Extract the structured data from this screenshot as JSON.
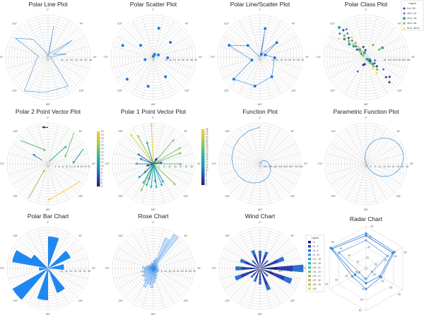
{
  "angle_labels": [
    "0°",
    "45°",
    "90°",
    "135°",
    "180°",
    "225°",
    "270°",
    "315°"
  ],
  "colors": {
    "line": "#5b9bd5",
    "marker": "#1e78e0",
    "grid": "#d3d3d3",
    "bar": "#1e88f0",
    "rose_fill": "#9cc8f5"
  },
  "chart_data": [
    {
      "title": "Polar Line Plot",
      "type": "line",
      "rmax": 36,
      "radial_ticks": [
        "0",
        "12",
        "16",
        "20",
        "24",
        "28",
        "32",
        "36"
      ],
      "points": [
        [
          0,
          0
        ],
        [
          10,
          27
        ],
        [
          15,
          3
        ],
        [
          55,
          25
        ],
        [
          60,
          5
        ],
        [
          80,
          16
        ],
        [
          85,
          2
        ],
        [
          145,
          30
        ],
        [
          185,
          30
        ],
        [
          215,
          35
        ],
        [
          260,
          10
        ],
        [
          275,
          8
        ],
        [
          300,
          32
        ],
        [
          320,
          20
        ],
        [
          340,
          4
        ],
        [
          0,
          0
        ]
      ]
    },
    {
      "title": "Polar Scatter Plot",
      "type": "scatter",
      "rmax": 40,
      "radial_ticks": [
        "0",
        "12",
        "16",
        "20",
        "24",
        "28",
        "32",
        "36",
        "40"
      ],
      "points": [
        [
          10.6,
          27.8
        ],
        [
          49,
          21.4
        ],
        [
          313,
          16.4
        ],
        [
          291,
          31
        ],
        [
          65,
          5.2
        ],
        [
          92,
          13.5
        ],
        [
          23,
          2.9
        ],
        [
          254,
          8.1
        ],
        [
          148,
          21.7
        ],
        [
          190,
          27.8
        ],
        [
          230,
          32.3
        ],
        [
          0,
          0.8
        ]
      ]
    },
    {
      "title": "Polar Line/Scatter Plot",
      "type": "linescatter",
      "rmax": 40,
      "radial_ticks": [
        "0",
        "12",
        "16",
        "20",
        "24",
        "28",
        "32",
        "36",
        "40"
      ],
      "points": [
        [
          0,
          0
        ],
        [
          10,
          27.5
        ],
        [
          23,
          3
        ],
        [
          49,
          21
        ],
        [
          66,
          5.3
        ],
        [
          92,
          13.8
        ],
        [
          149,
          21.5
        ],
        [
          190,
          27.7
        ],
        [
          230,
          32.3
        ],
        [
          251,
          8.2
        ],
        [
          291,
          31.3
        ],
        [
          314,
          16
        ],
        [
          0,
          0
        ]
      ]
    },
    {
      "title": "Polar Class Plot",
      "type": "class",
      "rmax": 180,
      "radial_ticks": [
        "0",
        "80",
        "100",
        "120",
        "140",
        "160",
        "180"
      ],
      "legend": {
        "title": "Legend",
        "entries": [
          "0 to <35",
          "35 to <42",
          "42 to <46",
          "46 to <54",
          "54 to <80.01"
        ],
        "colors": [
          "#2d2a7a",
          "#2f6fc8",
          "#20a39e",
          "#9cbf52",
          "#f0d24a"
        ],
        "shapes": [
          "plus",
          "diamond",
          "square",
          "circle",
          "triangle"
        ]
      },
      "points": [
        [
          318,
          170,
          2
        ],
        [
          320,
          150,
          0
        ],
        [
          312,
          150,
          1
        ],
        [
          325,
          145,
          1
        ],
        [
          305,
          140,
          4
        ],
        [
          315,
          130,
          3
        ],
        [
          322,
          128,
          1
        ],
        [
          310,
          120,
          2
        ],
        [
          318,
          110,
          0
        ],
        [
          325,
          105,
          4
        ],
        [
          313,
          100,
          3
        ],
        [
          320,
          92,
          1
        ],
        [
          308,
          90,
          2
        ],
        [
          316,
          82,
          4
        ],
        [
          323,
          75,
          3
        ],
        [
          312,
          70,
          2
        ],
        [
          318,
          62,
          1
        ],
        [
          325,
          55,
          4
        ],
        [
          310,
          50,
          0
        ],
        [
          320,
          42,
          2
        ],
        [
          315,
          35,
          3
        ],
        [
          328,
          30,
          4
        ],
        [
          305,
          25,
          1
        ],
        [
          340,
          20,
          2
        ],
        [
          300,
          15,
          3
        ],
        [
          355,
          30,
          0
        ],
        [
          345,
          45,
          0
        ],
        [
          30,
          60,
          3
        ],
        [
          60,
          80,
          2
        ],
        [
          60,
          65,
          3
        ],
        [
          150,
          10,
          2
        ],
        [
          140,
          20,
          2
        ],
        [
          130,
          25,
          0
        ],
        [
          145,
          30,
          3
        ],
        [
          135,
          40,
          2
        ],
        [
          125,
          45,
          1
        ],
        [
          140,
          50,
          3
        ],
        [
          150,
          55,
          4
        ],
        [
          130,
          60,
          0
        ],
        [
          138,
          70,
          3
        ],
        [
          145,
          80,
          4
        ],
        [
          125,
          90,
          1
        ],
        [
          135,
          120,
          0
        ],
        [
          130,
          130,
          0
        ],
        [
          137,
          145,
          0
        ],
        [
          190,
          30,
          0
        ],
        [
          200,
          35,
          0
        ],
        [
          210,
          70,
          1
        ],
        [
          110,
          40,
          1
        ],
        [
          120,
          18,
          1
        ]
      ]
    },
    {
      "title": "Polar 2 Point Vector Plot",
      "type": "vector2",
      "rmax": 22,
      "radial_ticks": [
        "0",
        "4",
        "6",
        "8",
        "10",
        "12",
        "14",
        "16",
        "18",
        "20",
        "22"
      ],
      "colorbar": {
        "min": 4,
        "max": 20,
        "ticks": [
          "4",
          "5",
          "6",
          "7",
          "8",
          "9",
          "10",
          "11",
          "12",
          "13",
          "14",
          "15",
          "16",
          "17",
          "18",
          "19",
          "20"
        ]
      },
      "vectors": [
        [
          0,
          19.6,
          351,
          19.8,
          4
        ],
        [
          310.6,
          19.3,
          350.5,
          7.4,
          14
        ],
        [
          39.8,
          21.9,
          69.5,
          9.8,
          15
        ],
        [
          26.6,
          1.4,
          45.7,
          13.7,
          12
        ],
        [
          301,
          3.6,
          302,
          9.7,
          9
        ],
        [
          67.2,
          20.5,
          89,
          13.4,
          10
        ],
        [
          209.5,
          21.1,
          211,
          3.6,
          16
        ],
        [
          119,
          19.6,
          180,
          19.6,
          20
        ]
      ]
    },
    {
      "title": "Polar 1 Point Vector Plot",
      "type": "vector1",
      "rmax": 30,
      "radial_ticks": [
        "0",
        "4",
        "8",
        "12",
        "16",
        "20",
        "24",
        "28"
      ],
      "colorbar": {
        "min": 4,
        "max": 26,
        "ticks": [
          "4",
          "5",
          "6",
          "7",
          "8",
          "9",
          "10",
          "11",
          "12",
          "13",
          "14",
          "15",
          "16",
          "17",
          "18",
          "19",
          "20",
          "21",
          "22",
          "23",
          "24",
          "25",
          "26"
        ]
      },
      "vectors": [
        [
          357,
          29.7,
          26
        ],
        [
          322,
          27.5,
          25
        ],
        [
          331,
          24,
          21
        ],
        [
          343,
          17,
          14
        ],
        [
          40,
          23.6,
          19
        ],
        [
          59,
          23.4,
          20
        ],
        [
          68,
          22,
          19
        ],
        [
          90,
          20.8,
          18
        ],
        [
          81,
          6.7,
          7
        ],
        [
          30,
          5,
          4
        ],
        [
          302,
          13.7,
          9
        ],
        [
          291,
          10.7,
          10
        ],
        [
          270,
          13.3,
          12
        ],
        [
          252,
          5.3,
          4
        ],
        [
          224,
          9.7,
          8
        ],
        [
          226,
          15,
          13
        ],
        [
          207,
          16.3,
          14
        ],
        [
          197,
          17,
          14
        ],
        [
          185,
          17.9,
          15
        ],
        [
          172,
          18,
          15
        ],
        [
          158,
          17.5,
          14
        ],
        [
          204,
          22,
          20
        ],
        [
          133,
          22.4,
          20
        ],
        [
          173,
          13.8,
          12
        ],
        [
          151,
          15.6,
          13
        ],
        [
          195,
          12.5,
          11
        ]
      ]
    },
    {
      "title": "Function Plot",
      "type": "function",
      "rmax": 800,
      "radial_ticks": [
        "0",
        "100",
        "200",
        "300",
        "400",
        "500",
        "600",
        "700",
        "800"
      ],
      "theta": [
        0,
        20,
        40,
        60,
        80,
        100,
        120,
        140,
        160,
        180,
        200,
        220,
        240,
        260,
        280,
        300,
        320,
        340,
        360
      ],
      "r": [
        0,
        40,
        80,
        120,
        160,
        200,
        240,
        280,
        320,
        360,
        400,
        440,
        480,
        520,
        560,
        600,
        640,
        680,
        720
      ]
    },
    {
      "title": "Parametric Function Plot",
      "type": "function",
      "rmax": 36,
      "radial_ticks": [
        "0",
        "4",
        "8",
        "12",
        "16",
        "20",
        "24",
        "28",
        "32",
        "36"
      ],
      "theta": [
        340,
        350,
        0,
        10,
        20,
        30,
        40,
        50,
        60,
        70,
        80,
        90,
        100,
        110,
        120,
        130,
        140,
        150,
        160
      ],
      "r": [
        0,
        5.9,
        11.6,
        17,
        21.9,
        26,
        29.4,
        32,
        33.5,
        34,
        33.5,
        32,
        29.4,
        26,
        21.9,
        17,
        11.6,
        5.9,
        0
      ]
    },
    {
      "title": "Polar Bar Chart",
      "type": "bar",
      "rmax": 36,
      "radial_ticks": [
        "0",
        "12",
        "16",
        "20",
        "24",
        "28",
        "32",
        "36"
      ],
      "bars": [
        [
          10,
          28
        ],
        [
          55,
          22
        ],
        [
          85,
          14
        ],
        [
          150,
          23
        ],
        [
          190,
          28
        ],
        [
          230,
          36
        ],
        [
          265,
          8
        ],
        [
          290,
          32
        ],
        [
          305,
          17
        ]
      ]
    },
    {
      "title": "Rose Chart",
      "type": "rose",
      "rmax": 40,
      "radial_ticks": [
        "0",
        "4",
        "8",
        "12",
        "16",
        "20",
        "24",
        "28",
        "32",
        "36",
        "40"
      ],
      "theta": [
        0,
        10,
        20,
        30,
        40,
        50,
        60,
        70,
        80,
        90,
        100,
        110,
        120,
        130,
        140,
        150,
        160,
        170,
        180,
        190,
        200,
        210,
        220,
        230,
        240,
        250,
        260,
        270,
        280,
        290,
        300,
        310,
        320,
        330,
        340,
        350
      ],
      "values": [
        8,
        10,
        32,
        39,
        6,
        4,
        5,
        4,
        3,
        5,
        4,
        6,
        5,
        6,
        5,
        8,
        10,
        14,
        19,
        16,
        20,
        15,
        12,
        13,
        10,
        12,
        9,
        11,
        7,
        6,
        5,
        4,
        5,
        4,
        6,
        5
      ]
    },
    {
      "title": "Wind Chart",
      "type": "wind",
      "rmax": 12,
      "radial_ticks": [
        "0%",
        "3%",
        "6%",
        "9%",
        "12%"
      ],
      "legend": {
        "title": "Legend",
        "entries": [
          "<3",
          ">3 - 6",
          ">6 - 9",
          ">9 - 12",
          ">12 - 15",
          ">15 - 18",
          ">18 - 21",
          ">21 - 24",
          ">24 - 27",
          ">27 - 30",
          ">30 - 33",
          ">33"
        ],
        "colors": [
          "#1a237e",
          "#283fb0",
          "#2f6fd0",
          "#3b8fd8",
          "#2aa7c9",
          "#2bb5b8",
          "#4bbfa3",
          "#7cc58f",
          "#b8b56a",
          "#d0b45a",
          "#c8c84a",
          "#d8e070"
        ]
      },
      "theta": [
        0,
        22.5,
        45,
        67.5,
        90,
        112.5,
        135,
        157.5,
        180,
        202.5,
        225,
        247.5,
        270,
        292.5,
        315,
        337.5
      ],
      "bins": [
        [
          2,
          2,
          1
        ],
        [
          2,
          2,
          1
        ],
        [
          1.2,
          1,
          0.8
        ],
        [
          3,
          2.5,
          1.8
        ],
        [
          5,
          4.5,
          3
        ],
        [
          4,
          3.5,
          2.2
        ],
        [
          1.2,
          1,
          0.8
        ],
        [
          2.6,
          2.4,
          1.6
        ],
        [
          1.8,
          1.6,
          1.1
        ],
        [
          1.6,
          1.4,
          1
        ],
        [
          1.4,
          1.2,
          0.9
        ],
        [
          3,
          2.8,
          1.8
        ],
        [
          2.8,
          2.5,
          1.7
        ],
        [
          2.4,
          2.1,
          1.5
        ],
        [
          1.2,
          1,
          0.8
        ],
        [
          2.2,
          2,
          1.3
        ]
      ]
    },
    {
      "title": "Radar Chart",
      "type": "radar",
      "rmax": 80,
      "ring_labels": [
        "20",
        "40",
        "60",
        "80"
      ],
      "series": [
        {
          "values": [
            66,
            62,
            33,
            39,
            30,
            77
          ],
          "color": "#4a90d9"
        },
        {
          "values": [
            62,
            58,
            30,
            28,
            24,
            74
          ],
          "color": "#2f7fd6"
        },
        {
          "values": [
            53,
            47,
            13,
            20,
            15,
            59
          ],
          "color": "#6aa8e6"
        }
      ]
    }
  ]
}
